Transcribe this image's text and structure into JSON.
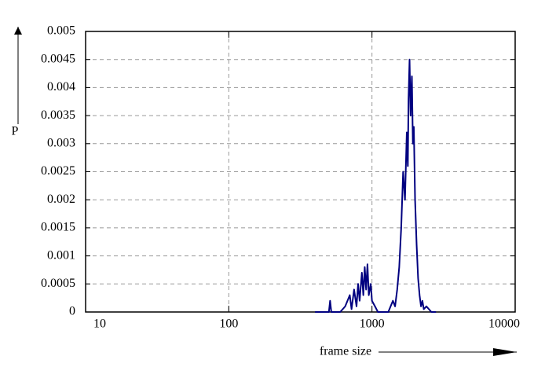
{
  "chart_data": {
    "type": "line",
    "x_label": "frame size",
    "y_label": "P",
    "x": [
      400,
      500,
      510,
      520,
      600,
      650,
      700,
      720,
      750,
      780,
      800,
      820,
      850,
      870,
      890,
      910,
      930,
      950,
      980,
      1000,
      1050,
      1100,
      1300,
      1400,
      1450,
      1500,
      1550,
      1600,
      1650,
      1700,
      1750,
      1780,
      1800,
      1830,
      1860,
      1900,
      1930,
      1960,
      2000,
      2050,
      2100,
      2150,
      2200,
      2250,
      2300,
      2400,
      2600,
      2800
    ],
    "series": [
      {
        "color": "#000080",
        "values": [
          0,
          0,
          0.0002,
          0,
          0,
          0.0001,
          0.0003,
          5e-05,
          0.0004,
          0.0001,
          0.0005,
          0.0002,
          0.0007,
          0.0003,
          0.0008,
          0.0004,
          0.00085,
          0.0003,
          0.0005,
          0.0002,
          0.0001,
          0,
          0,
          0.0002,
          0.0001,
          0.0004,
          0.0008,
          0.0015,
          0.0025,
          0.002,
          0.0032,
          0.0026,
          0.0038,
          0.0045,
          0.0035,
          0.0042,
          0.003,
          0.0033,
          0.002,
          0.0012,
          0.0006,
          0.0003,
          0.0001,
          0.0002,
          5e-05,
          0.0001,
          0,
          0
        ]
      }
    ],
    "xlim": [
      10,
      10000
    ],
    "xticks": [
      10,
      100,
      1000,
      10000
    ],
    "xscale": "log",
    "ylim": [
      0,
      0.005
    ],
    "yticks": [
      0,
      0.0005,
      0.001,
      0.0015,
      0.002,
      0.0025,
      0.003,
      0.0035,
      0.004,
      0.0045,
      0.005
    ],
    "grid": true
  }
}
